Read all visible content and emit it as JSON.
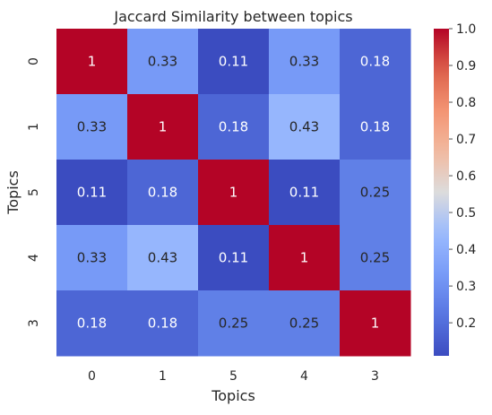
{
  "chart_data": {
    "type": "heatmap",
    "title": "Jaccard Similarity between topics",
    "xlabel": "Topics",
    "ylabel": "Topics",
    "x_categories": [
      "0",
      "1",
      "5",
      "4",
      "3"
    ],
    "y_categories": [
      "0",
      "1",
      "5",
      "4",
      "3"
    ],
    "values": [
      [
        1,
        0.33,
        0.11,
        0.33,
        0.18
      ],
      [
        0.33,
        1,
        0.18,
        0.43,
        0.18
      ],
      [
        0.11,
        0.18,
        1,
        0.11,
        0.25
      ],
      [
        0.33,
        0.43,
        0.11,
        1,
        0.25
      ],
      [
        0.18,
        0.18,
        0.25,
        0.25,
        1
      ]
    ],
    "colormap": "coolwarm",
    "vmin": 0.11,
    "vmax": 1.0,
    "colorbar_ticks": [
      "0.2",
      "0.3",
      "0.4",
      "0.5",
      "0.6",
      "0.7",
      "0.8",
      "0.9",
      "1.0"
    ],
    "annotated": true,
    "grid": false,
    "legend": "colorbar-right"
  }
}
